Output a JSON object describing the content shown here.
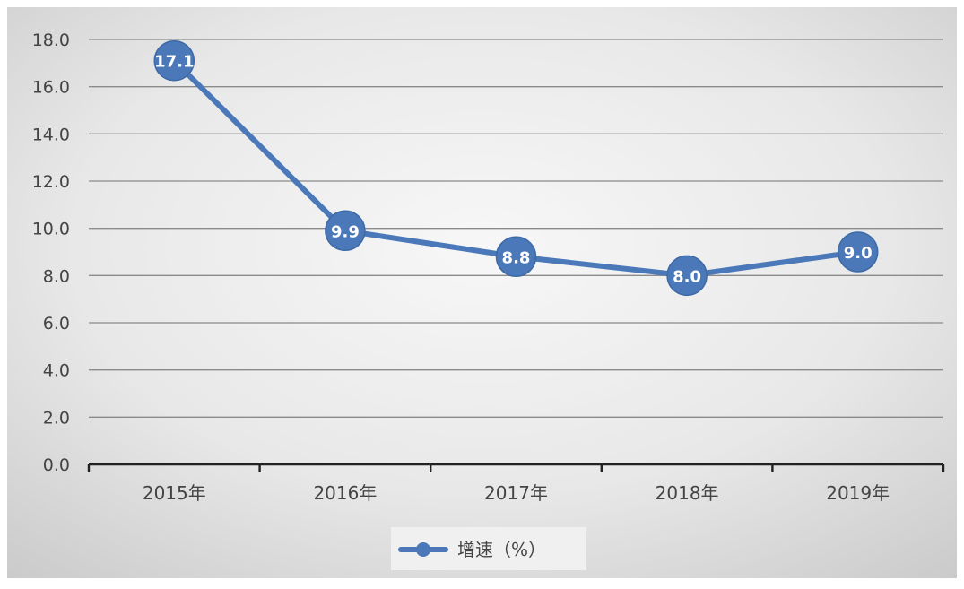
{
  "chart_data": {
    "type": "line",
    "categories": [
      "2015年",
      "2016年",
      "2017年",
      "2018年",
      "2019年"
    ],
    "series": [
      {
        "name": "增速（%）",
        "values": [
          17.1,
          9.9,
          8.8,
          8.0,
          9.0
        ]
      }
    ],
    "data_labels": [
      "17.1",
      "9.9",
      "8.8",
      "8.0",
      "9.0"
    ],
    "y_ticks": [
      "0.0",
      "2.0",
      "4.0",
      "6.0",
      "8.0",
      "10.0",
      "12.0",
      "14.0",
      "16.0",
      "18.0"
    ],
    "ylim": [
      0,
      18
    ],
    "grid": true,
    "legend_position": "bottom",
    "colors": {
      "series": "#4a78b8",
      "grid": "#8a8a8a",
      "axis": "#222222",
      "text": "#444444"
    }
  }
}
